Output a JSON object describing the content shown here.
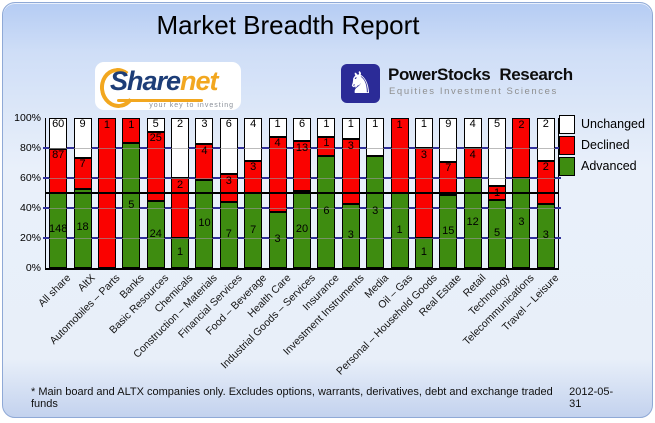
{
  "title": "Market Breadth Report",
  "logos": {
    "sharenet": {
      "word_main": "Share",
      "word_accent": "net",
      "tagline": "your key to investing",
      "navy": "#1d3d77",
      "orange": "#f2a71f"
    },
    "powerstocks": {
      "name_word1": "PowerStocks",
      "name_word2": "Research",
      "tagline": "Equities Investment Sciences",
      "icon": "chess-knight-icon",
      "box_color": "#2b2b97",
      "knight_glyph": "♞"
    }
  },
  "chart_data": {
    "type": "bar",
    "stacked": true,
    "stack_units": "percent_of_total",
    "title": "Market Breadth Report",
    "categories": [
      "All share",
      "AltX",
      "Automobiles – Parts",
      "Banks",
      "Basic Resources",
      "Chemicals",
      "Construction – Materials",
      "Financial Services",
      "Food – Beverage",
      "Health Care",
      "Industrial Goods – Services",
      "Insurance",
      "Investment Instruments",
      "Media",
      "Oil – Gas",
      "Personal – Household Goods",
      "Real Estate",
      "Retail",
      "Technology",
      "Telecommunications",
      "Travel – Leisure"
    ],
    "series": [
      {
        "name": "Unchanged",
        "color": "#ffffff",
        "values": [
          60,
          9,
          0,
          0,
          5,
          2,
          3,
          6,
          4,
          1,
          6,
          1,
          1,
          1,
          0,
          1,
          9,
          4,
          5,
          0,
          2
        ]
      },
      {
        "name": "Declined",
        "color": "#fa0200",
        "values": [
          87,
          7,
          1,
          1,
          25,
          2,
          4,
          3,
          3,
          4,
          13,
          1,
          3,
          0,
          1,
          3,
          7,
          4,
          1,
          2,
          2
        ]
      },
      {
        "name": "Advanced",
        "color": "#3e8c10",
        "values": [
          148,
          18,
          0,
          5,
          24,
          1,
          10,
          7,
          7,
          3,
          20,
          6,
          3,
          3,
          1,
          1,
          15,
          12,
          5,
          3,
          3
        ]
      }
    ],
    "stack_order_top_to_bottom": [
      "Unchanged",
      "Declined",
      "Advanced"
    ],
    "bar_labels": "raw_counts_on_segments",
    "ylim": [
      0,
      100
    ],
    "y_tick_values": [
      0,
      20,
      40,
      60,
      80,
      100
    ],
    "y_tick_labels": [
      "0%",
      "20%",
      "40%",
      "60%",
      "80%",
      "100%"
    ],
    "gridline_values": [
      20,
      40,
      60,
      80
    ],
    "grid_color": "#31319b",
    "reference_line_value": 50,
    "reference_line_color": "#000000",
    "legend_position": "top-right",
    "legend": [
      "Unchanged",
      "Declined",
      "Advanced"
    ]
  },
  "footer": {
    "note": "* Main board and ALTX companies only. Excludes options, warrants, derivatives, debt and exchange traded funds",
    "date": "2012-05-31"
  }
}
